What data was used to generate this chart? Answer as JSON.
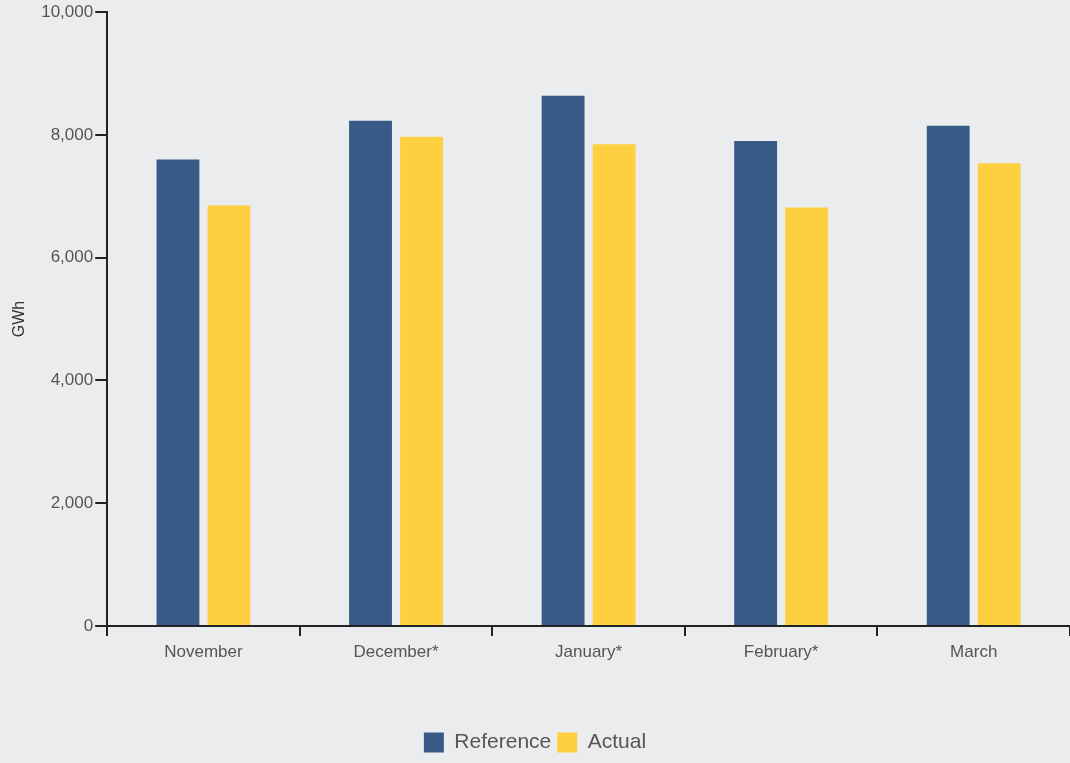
{
  "chart_data": {
    "type": "bar",
    "ylabel": "GWh",
    "categories": [
      "November",
      "December*",
      "January*",
      "February*",
      "March"
    ],
    "series": [
      {
        "name": "Reference",
        "color": "#375a87",
        "values": [
          7600,
          8230,
          8640,
          7900,
          8150
        ]
      },
      {
        "name": "Actual",
        "color": "#fecf41",
        "values": [
          6850,
          7970,
          7850,
          6820,
          7540
        ]
      }
    ],
    "ylim": [
      0,
      10000
    ],
    "yticks": [
      {
        "value": 0,
        "label": "0"
      },
      {
        "value": 2000,
        "label": "2,000"
      },
      {
        "value": 4000,
        "label": "4,000"
      },
      {
        "value": 6000,
        "label": "6,000"
      },
      {
        "value": 8000,
        "label": "8,000"
      },
      {
        "value": 10000,
        "label": "10,000"
      }
    ],
    "grid": false,
    "legend": "bottom"
  }
}
